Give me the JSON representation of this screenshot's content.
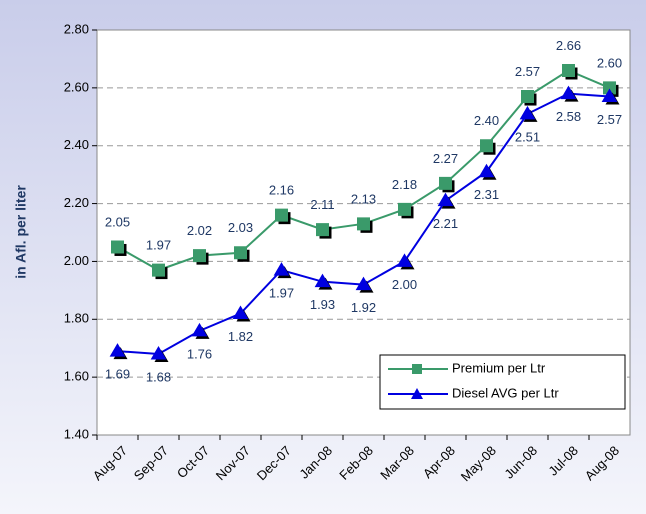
{
  "chart_data": {
    "type": "line",
    "ylabel": "in Afl. per liter",
    "categories": [
      "Aug-07",
      "Sep-07",
      "Oct-07",
      "Nov-07",
      "Dec-07",
      "Jan-08",
      "Feb-08",
      "Mar-08",
      "Apr-08",
      "May-08",
      "Jun-08",
      "Jul-08",
      "Aug-08"
    ],
    "series": [
      {
        "name": "Premium per Ltr",
        "color": "#3a9a6a",
        "marker": "square",
        "values": [
          2.05,
          1.97,
          2.02,
          2.03,
          2.16,
          2.11,
          2.13,
          2.18,
          2.27,
          2.4,
          2.57,
          2.66,
          2.6
        ],
        "value_labels": [
          "2.05",
          "1.97",
          "2.02",
          "2.03",
          "2.16",
          "2.11",
          "2.13",
          "2.18",
          "2.27",
          "2.40",
          "2.57",
          "2.66",
          "2.60"
        ]
      },
      {
        "name": "Diesel AVG per Ltr",
        "color": "#0000e0",
        "marker": "triangle",
        "values": [
          1.69,
          1.68,
          1.76,
          1.82,
          1.97,
          1.93,
          1.92,
          2.0,
          2.21,
          2.31,
          2.51,
          2.58,
          2.57
        ],
        "value_labels": [
          "1.69",
          "1.68",
          "1.76",
          "1.82",
          "1.97",
          "1.93",
          "1.92",
          "2.00",
          "2.21",
          "2.31",
          "2.51",
          "2.58",
          "2.57"
        ]
      }
    ],
    "ylim": [
      1.4,
      2.8
    ],
    "yticks": [
      {
        "value": 1.4,
        "label": "1.40"
      },
      {
        "value": 1.6,
        "label": "1.60"
      },
      {
        "value": 1.8,
        "label": "1.80"
      },
      {
        "value": 2.0,
        "label": "2.00"
      },
      {
        "value": 2.2,
        "label": "2.20"
      },
      {
        "value": 2.4,
        "label": "2.40"
      },
      {
        "value": 2.6,
        "label": "2.60"
      },
      {
        "value": 2.8,
        "label": "2.80"
      }
    ],
    "grid": true,
    "legend": "lower right"
  }
}
